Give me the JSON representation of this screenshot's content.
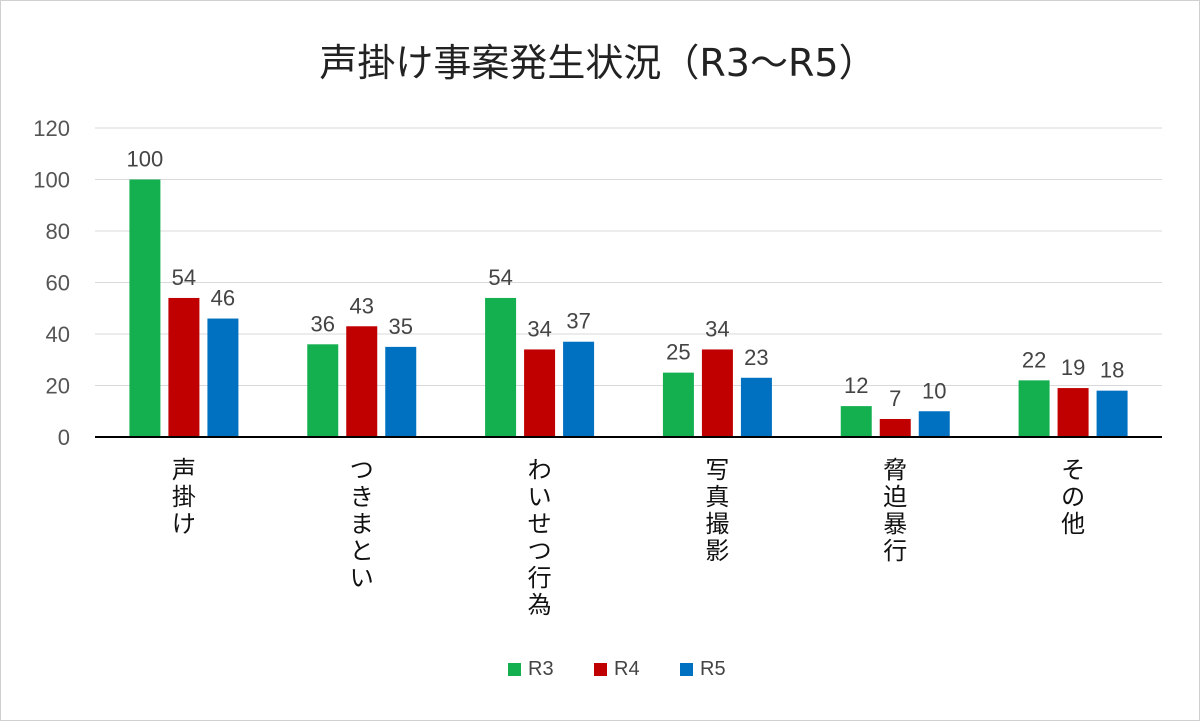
{
  "chart_data": {
    "type": "bar",
    "title": "声掛け事案発生状況（R3〜R5）",
    "categories": [
      "声掛け",
      "つきまとい",
      "わいせつ行為",
      "写真撮影",
      "脅迫暴行",
      "その他"
    ],
    "series": [
      {
        "name": "R3",
        "color": "#14b050",
        "values": [
          100,
          36,
          54,
          25,
          12,
          22
        ]
      },
      {
        "name": "R4",
        "color": "#c00000",
        "values": [
          54,
          43,
          34,
          34,
          7,
          19
        ]
      },
      {
        "name": "R5",
        "color": "#0070c0",
        "values": [
          46,
          35,
          37,
          23,
          10,
          18
        ]
      }
    ],
    "yticks": [
      "0",
      "20",
      "40",
      "60",
      "80",
      "100",
      "120"
    ],
    "ylim": [
      0,
      120
    ],
    "grid": true,
    "legend": "bottom-center",
    "xlabel": "",
    "ylabel": ""
  }
}
